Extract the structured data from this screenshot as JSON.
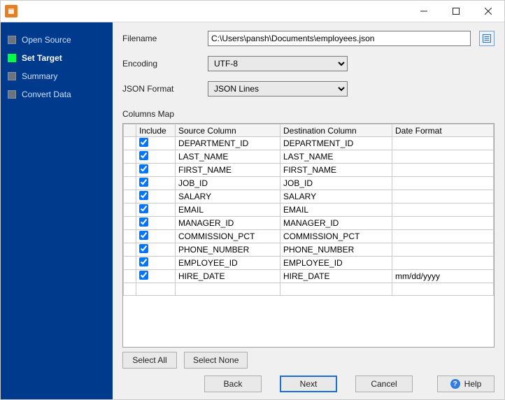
{
  "titlebar": {
    "app_icon_color": "#e67e22"
  },
  "sidebar": {
    "steps": [
      {
        "label": "Open Source",
        "active": false
      },
      {
        "label": "Set Target",
        "active": true
      },
      {
        "label": "Summary",
        "active": false
      },
      {
        "label": "Convert Data",
        "active": false
      }
    ]
  },
  "form": {
    "filename_label": "Filename",
    "filename_value": "C:\\Users\\pansh\\Documents\\employees.json",
    "encoding_label": "Encoding",
    "encoding_value": "UTF-8",
    "jsonformat_label": "JSON Format",
    "jsonformat_value": "JSON Lines"
  },
  "columnsMap": {
    "label": "Columns Map",
    "headers": {
      "include": "Include",
      "source": "Source Column",
      "dest": "Destination Column",
      "datefmt": "Date Format"
    },
    "rows": [
      {
        "include": true,
        "source": "DEPARTMENT_ID",
        "dest": "DEPARTMENT_ID",
        "datefmt": ""
      },
      {
        "include": true,
        "source": "LAST_NAME",
        "dest": "LAST_NAME",
        "datefmt": ""
      },
      {
        "include": true,
        "source": "FIRST_NAME",
        "dest": "FIRST_NAME",
        "datefmt": ""
      },
      {
        "include": true,
        "source": "JOB_ID",
        "dest": "JOB_ID",
        "datefmt": ""
      },
      {
        "include": true,
        "source": "SALARY",
        "dest": "SALARY",
        "datefmt": ""
      },
      {
        "include": true,
        "source": "EMAIL",
        "dest": "EMAIL",
        "datefmt": ""
      },
      {
        "include": true,
        "source": "MANAGER_ID",
        "dest": "MANAGER_ID",
        "datefmt": ""
      },
      {
        "include": true,
        "source": "COMMISSION_PCT",
        "dest": "COMMISSION_PCT",
        "datefmt": ""
      },
      {
        "include": true,
        "source": "PHONE_NUMBER",
        "dest": "PHONE_NUMBER",
        "datefmt": ""
      },
      {
        "include": true,
        "source": "EMPLOYEE_ID",
        "dest": "EMPLOYEE_ID",
        "datefmt": ""
      },
      {
        "include": true,
        "source": "HIRE_DATE",
        "dest": "HIRE_DATE",
        "datefmt": "mm/dd/yyyy"
      }
    ],
    "select_all": "Select All",
    "select_none": "Select None"
  },
  "footer": {
    "back": "Back",
    "next": "Next",
    "cancel": "Cancel",
    "help": "Help"
  }
}
